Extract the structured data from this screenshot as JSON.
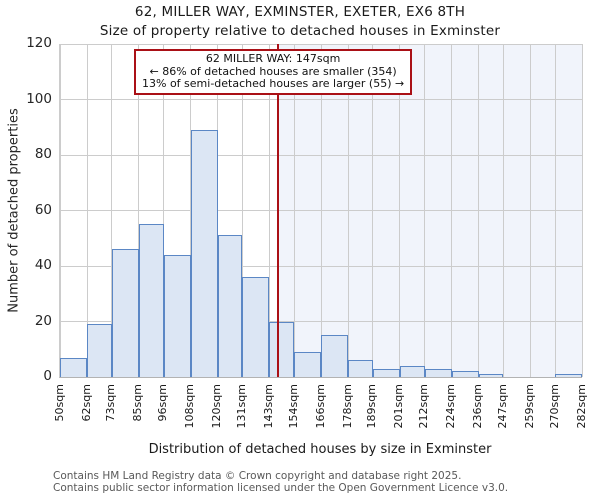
{
  "title": "62, MILLER WAY, EXMINSTER, EXETER, EX6 8TH",
  "subtitle": "Size of property relative to detached houses in Exminster",
  "callout": {
    "line1": "62 MILLER WAY: 147sqm",
    "line2": "← 86% of detached houses are smaller (354)",
    "line3": "13% of semi-detached houses are larger (55) →"
  },
  "footer": {
    "line1": "Contains HM Land Registry data © Crown copyright and database right 2025.",
    "line2": "Contains public sector information licensed under the Open Government Licence v3.0."
  },
  "chart_data": {
    "type": "bar",
    "title": "62, MILLER WAY, EXMINSTER, EXETER, EX6 8TH — Size of property relative to detached houses in Exminster",
    "xlabel": "Distribution of detached houses by size in Exminster",
    "ylabel": "Number of detached properties",
    "bin_edges_sqm": [
      50,
      62,
      73,
      85,
      96,
      108,
      120,
      131,
      143,
      154,
      166,
      178,
      189,
      201,
      212,
      224,
      236,
      247,
      259,
      270,
      282
    ],
    "tick_labels": [
      "50sqm",
      "62sqm",
      "73sqm",
      "85sqm",
      "96sqm",
      "108sqm",
      "120sqm",
      "131sqm",
      "143sqm",
      "154sqm",
      "166sqm",
      "178sqm",
      "189sqm",
      "201sqm",
      "212sqm",
      "224sqm",
      "236sqm",
      "247sqm",
      "259sqm",
      "270sqm",
      "282sqm"
    ],
    "values": [
      7,
      19,
      46,
      55,
      44,
      89,
      51,
      36,
      20,
      9,
      15,
      6,
      3,
      4,
      3,
      2,
      1,
      0,
      0,
      1
    ],
    "yticks": [
      0,
      20,
      40,
      60,
      80,
      100,
      120
    ],
    "ylim": [
      0,
      120
    ],
    "xlim_sqm": [
      50,
      282
    ],
    "grid": true,
    "legend": "none",
    "marker_sqm": 147,
    "shaded_region_sqm": [
      147,
      282
    ],
    "colors": {
      "bar_fill": "#dce6f4",
      "bar_edge": "#5b87c5",
      "marker_line": "#aa1016",
      "callout_border": "#aa1016",
      "shade": "#f1f4fb",
      "grid": "#cccccc"
    }
  }
}
